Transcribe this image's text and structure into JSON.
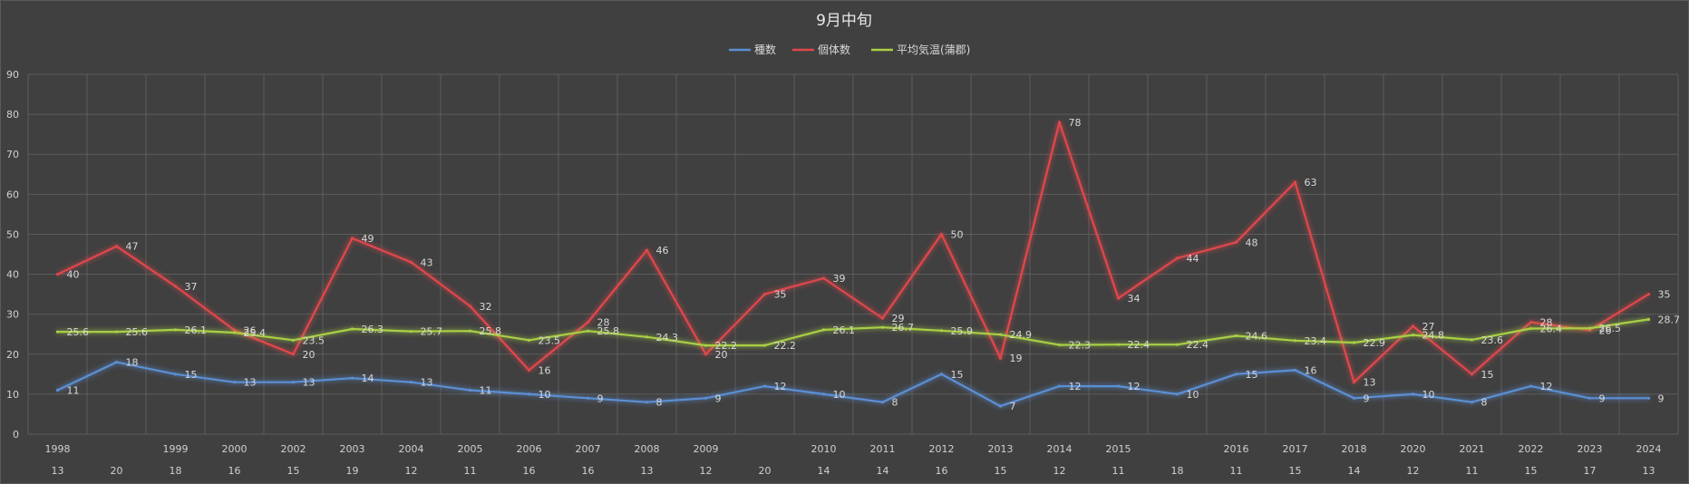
{
  "chart_data": {
    "type": "line",
    "title": "9月中旬",
    "xlabel": "",
    "ylabel": "",
    "ylim": [
      0,
      90
    ],
    "yticks": [
      0,
      10,
      20,
      30,
      40,
      50,
      60,
      70,
      80,
      90
    ],
    "grid": true,
    "legend_position": "top",
    "categories": [
      {
        "year": "1998",
        "sub": "13"
      },
      {
        "year": "",
        "sub": "20"
      },
      {
        "year": "1999",
        "sub": "18"
      },
      {
        "year": "2000",
        "sub": "16"
      },
      {
        "year": "2002",
        "sub": "15"
      },
      {
        "year": "2003",
        "sub": "19"
      },
      {
        "year": "2004",
        "sub": "12"
      },
      {
        "year": "2005",
        "sub": "11"
      },
      {
        "year": "2006",
        "sub": "16"
      },
      {
        "year": "2007",
        "sub": "16"
      },
      {
        "year": "2008",
        "sub": "13"
      },
      {
        "year": "2009",
        "sub": "12"
      },
      {
        "year": "",
        "sub": "20"
      },
      {
        "year": "2010",
        "sub": "14"
      },
      {
        "year": "2011",
        "sub": "14"
      },
      {
        "year": "2012",
        "sub": "16"
      },
      {
        "year": "2013",
        "sub": "15"
      },
      {
        "year": "2014",
        "sub": "12"
      },
      {
        "year": "2015",
        "sub": "11"
      },
      {
        "year": "",
        "sub": "18"
      },
      {
        "year": "2016",
        "sub": "11"
      },
      {
        "year": "2017",
        "sub": "15"
      },
      {
        "year": "2018",
        "sub": "14"
      },
      {
        "year": "2020",
        "sub": "12"
      },
      {
        "year": "2021",
        "sub": "11"
      },
      {
        "year": "2022",
        "sub": "15"
      },
      {
        "year": "2023",
        "sub": "17"
      },
      {
        "year": "2024",
        "sub": "13"
      }
    ],
    "series": [
      {
        "name": "種数",
        "color": "#5b8fd4",
        "values": [
          11,
          18,
          15,
          13,
          13,
          14,
          13,
          11,
          10,
          9,
          8,
          9,
          12,
          10,
          8,
          15,
          7,
          12,
          12,
          10,
          15,
          16,
          9,
          10,
          8,
          12,
          9,
          9
        ]
      },
      {
        "name": "個体数",
        "color": "#e0474c",
        "values": [
          40,
          47,
          37,
          26,
          20,
          49,
          43,
          32,
          16,
          28,
          46,
          20,
          35,
          39,
          29,
          50,
          19,
          78,
          34,
          44,
          48,
          63,
          13,
          27,
          15,
          28,
          26,
          35
        ]
      },
      {
        "name": "平均気温(蒲郡)",
        "color": "#a8cf45",
        "values": [
          25.6,
          25.6,
          26.1,
          25.4,
          23.5,
          26.3,
          25.7,
          25.8,
          23.5,
          25.8,
          24.3,
          22.2,
          22.2,
          26.1,
          26.7,
          25.9,
          24.9,
          22.3,
          22.4,
          22.4,
          24.6,
          23.4,
          22.9,
          24.8,
          23.6,
          26.4,
          26.5,
          28.7
        ]
      }
    ]
  }
}
